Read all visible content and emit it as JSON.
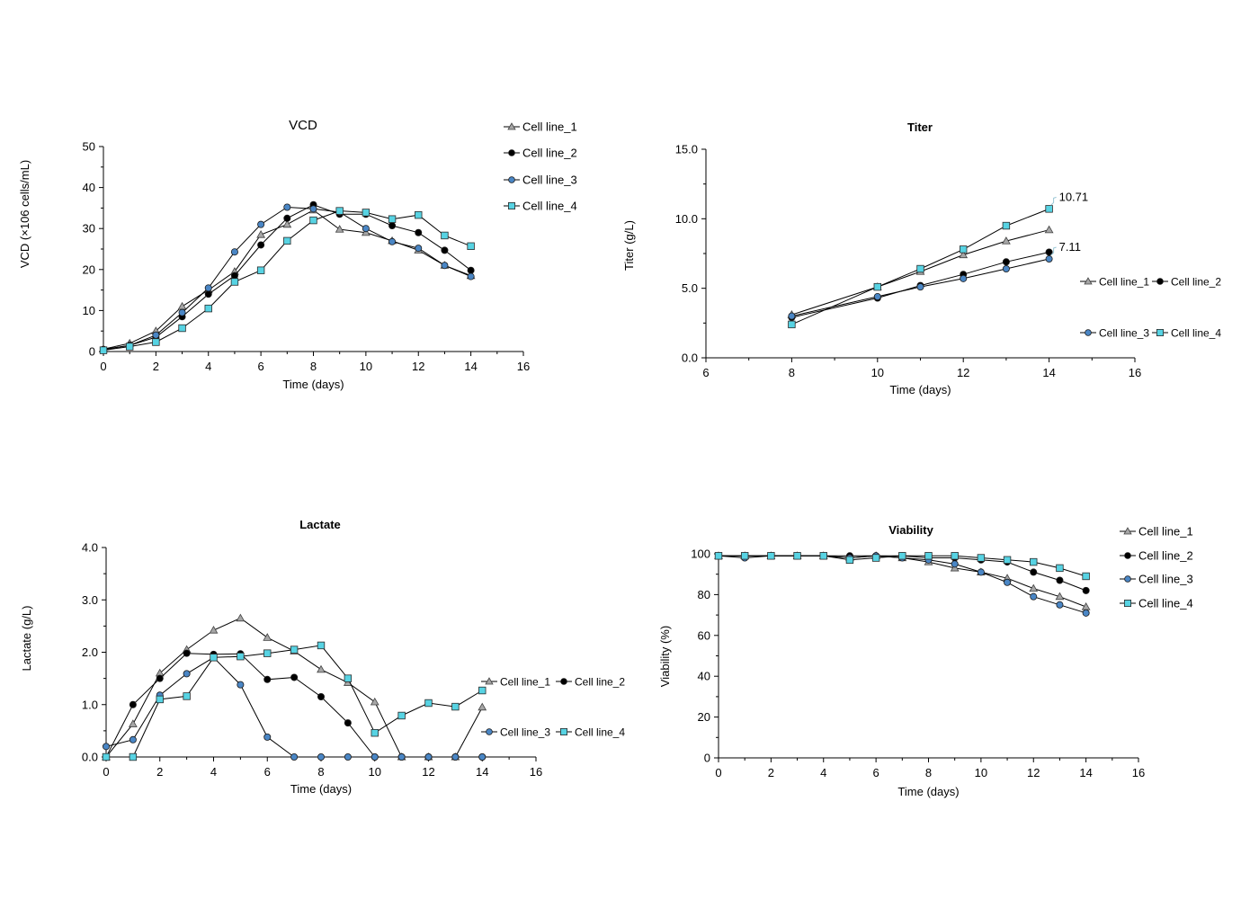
{
  "colors": {
    "cell_line_1_fill": "#a6a6a6",
    "cell_line_2_fill": "#000000",
    "cell_line_3_fill": "#4a86c5",
    "cell_line_4_fill": "#57d3e3",
    "line": "#000000",
    "axis": "#000000"
  },
  "chart_data": [
    {
      "id": "vcd",
      "type": "line",
      "title": "VCD",
      "xlabel": "Time (days)",
      "ylabel": "VCD (×106 cells/mL)",
      "xlim": [
        0,
        16
      ],
      "ylim": [
        0,
        50
      ],
      "xticks": [
        "0",
        "2",
        "4",
        "6",
        "8",
        "10",
        "12",
        "14",
        "16"
      ],
      "yticks": [
        "0",
        "10",
        "20",
        "30",
        "40",
        "50"
      ],
      "legend": "right-vertical",
      "series": [
        {
          "name": "Cell line_1",
          "marker": "triangle",
          "x": [
            0,
            1,
            2,
            3,
            4,
            5,
            6,
            7,
            8,
            9,
            10,
            11,
            12,
            13,
            14
          ],
          "y": [
            0.6,
            2,
            5,
            11,
            15,
            19.5,
            28.5,
            31,
            34.5,
            29.8,
            29,
            27,
            24.7,
            21,
            18.5
          ]
        },
        {
          "name": "Cell line_2",
          "marker": "circle",
          "x": [
            0,
            1,
            2,
            3,
            4,
            5,
            6,
            7,
            8,
            9,
            10,
            11,
            12,
            13,
            14
          ],
          "y": [
            0.5,
            1.5,
            3.5,
            8.5,
            14,
            18.5,
            26,
            32.5,
            35.8,
            33.5,
            33.5,
            30.7,
            29,
            24.7,
            19.8
          ]
        },
        {
          "name": "Cell line_3",
          "marker": "circle",
          "x": [
            0,
            1,
            2,
            3,
            4,
            5,
            6,
            7,
            8,
            9,
            10,
            11,
            12,
            13,
            14
          ],
          "y": [
            0.5,
            1.5,
            4,
            9.5,
            15.5,
            24.3,
            31,
            35.2,
            34.8,
            34,
            30,
            26.8,
            25.2,
            21,
            18.3
          ]
        },
        {
          "name": "Cell line_4",
          "marker": "square",
          "x": [
            0,
            1,
            2,
            3,
            4,
            5,
            6,
            7,
            8,
            9,
            10,
            11,
            12,
            13,
            14
          ],
          "y": [
            0.3,
            1.2,
            2.3,
            5.7,
            10.5,
            17,
            19.8,
            27,
            32,
            34.3,
            33.9,
            32.3,
            33.3,
            28.3,
            25.7
          ]
        }
      ]
    },
    {
      "id": "titer",
      "type": "line",
      "title": "Titer",
      "xlabel": "Time (days)",
      "ylabel": "Titer (g/L)",
      "xlim": [
        6,
        16
      ],
      "ylim": [
        0,
        15
      ],
      "xticks": [
        "6",
        "8",
        "10",
        "12",
        "14",
        "16"
      ],
      "yticks": [
        "0.0",
        "5.0",
        "10.0",
        "15.0"
      ],
      "legend": "right-two-rows",
      "annotations": [
        {
          "text": "10.71",
          "x": 14,
          "y": 10.71
        },
        {
          "text": "7.11",
          "x": 14,
          "y": 7.11
        }
      ],
      "series": [
        {
          "name": "Cell line_1",
          "marker": "triangle",
          "x": [
            8,
            10,
            11,
            12,
            13,
            14
          ],
          "y": [
            3.1,
            5.1,
            6.2,
            7.4,
            8.4,
            9.2
          ]
        },
        {
          "name": "Cell line_2",
          "marker": "circle",
          "x": [
            8,
            10,
            11,
            12,
            13,
            14
          ],
          "y": [
            2.9,
            4.3,
            5.2,
            6.0,
            6.9,
            7.6
          ]
        },
        {
          "name": "Cell line_3",
          "marker": "circle",
          "x": [
            8,
            10,
            11,
            12,
            13,
            14
          ],
          "y": [
            3.0,
            4.4,
            5.1,
            5.7,
            6.4,
            7.11
          ]
        },
        {
          "name": "Cell line_4",
          "marker": "square",
          "x": [
            8,
            10,
            11,
            12,
            13,
            14
          ],
          "y": [
            2.4,
            5.1,
            6.4,
            7.8,
            9.5,
            10.71
          ]
        }
      ]
    },
    {
      "id": "lactate",
      "type": "line",
      "title": "Lactate",
      "xlabel": "Time (days)",
      "ylabel": "Lactate  (g/L)",
      "xlim": [
        0,
        16
      ],
      "ylim": [
        0,
        4
      ],
      "xticks": [
        "0",
        "2",
        "4",
        "6",
        "8",
        "10",
        "12",
        "14",
        "16"
      ],
      "yticks": [
        "0.0",
        "1.0",
        "2.0",
        "3.0",
        "4.0"
      ],
      "legend": "right-two-rows",
      "series": [
        {
          "name": "Cell line_1",
          "marker": "triangle",
          "x": [
            0,
            1,
            2,
            3,
            4,
            5,
            6,
            7,
            8,
            9,
            10,
            11,
            12,
            13,
            14
          ],
          "y": [
            0,
            0.63,
            1.6,
            2.05,
            2.42,
            2.65,
            2.28,
            2.02,
            1.67,
            1.42,
            1.05,
            0,
            0,
            0,
            0.95
          ]
        },
        {
          "name": "Cell line_2",
          "marker": "circle",
          "x": [
            0,
            1,
            2,
            3,
            4,
            5,
            6,
            7,
            8,
            9,
            10,
            11,
            12,
            13,
            14
          ],
          "y": [
            0,
            1.0,
            1.5,
            1.98,
            1.96,
            1.97,
            1.48,
            1.52,
            1.15,
            0.65,
            0,
            0,
            0,
            0,
            0
          ]
        },
        {
          "name": "Cell line_3",
          "marker": "circle",
          "x": [
            0,
            1,
            2,
            3,
            4,
            5,
            6,
            7,
            8,
            9,
            10,
            11,
            12,
            13,
            14
          ],
          "y": [
            0.2,
            0.33,
            1.18,
            1.59,
            1.9,
            1.38,
            0.38,
            0,
            0,
            0,
            0,
            0,
            0,
            0,
            0
          ]
        },
        {
          "name": "Cell line_4",
          "marker": "square",
          "x": [
            0,
            1,
            2,
            3,
            4,
            5,
            6,
            7,
            8,
            9,
            10,
            11,
            12,
            13,
            14
          ],
          "y": [
            0,
            0,
            1.1,
            1.16,
            1.9,
            1.92,
            1.98,
            2.05,
            2.13,
            1.5,
            0.46,
            0.79,
            1.03,
            0.96,
            1.27
          ]
        }
      ]
    },
    {
      "id": "viability",
      "type": "line",
      "title": "Viability",
      "xlabel": "Time (days)",
      "ylabel": "Viability (%)",
      "xlim": [
        0,
        16
      ],
      "ylim": [
        0,
        100
      ],
      "xticks": [
        "0",
        "2",
        "4",
        "6",
        "8",
        "10",
        "12",
        "14",
        "16"
      ],
      "yticks": [
        "0",
        "20",
        "40",
        "60",
        "80",
        "100"
      ],
      "legend": "right-vertical",
      "series": [
        {
          "name": "Cell line_1",
          "marker": "triangle",
          "x": [
            0,
            1,
            2,
            3,
            4,
            5,
            6,
            7,
            8,
            9,
            10,
            11,
            12,
            13,
            14
          ],
          "y": [
            99,
            99,
            99,
            99,
            99,
            98,
            99,
            98,
            96,
            93,
            91,
            88,
            83,
            79,
            74
          ]
        },
        {
          "name": "Cell line_2",
          "marker": "circle",
          "x": [
            0,
            1,
            2,
            3,
            4,
            5,
            6,
            7,
            8,
            9,
            10,
            11,
            12,
            13,
            14
          ],
          "y": [
            99,
            99,
            99,
            99,
            99,
            99,
            99,
            99,
            98,
            98,
            97,
            96,
            91,
            87,
            82
          ]
        },
        {
          "name": "Cell line_3",
          "marker": "circle",
          "x": [
            0,
            1,
            2,
            3,
            4,
            5,
            6,
            7,
            8,
            9,
            10,
            11,
            12,
            13,
            14
          ],
          "y": [
            99,
            98,
            99,
            99,
            99,
            98,
            99,
            98,
            97,
            95,
            91,
            86,
            79,
            75,
            71
          ]
        },
        {
          "name": "Cell line_4",
          "marker": "square",
          "x": [
            0,
            1,
            2,
            3,
            4,
            5,
            6,
            7,
            8,
            9,
            10,
            11,
            12,
            13,
            14
          ],
          "y": [
            99,
            99,
            99,
            99,
            99,
            97,
            98,
            99,
            99,
            99,
            98,
            97,
            96,
            93,
            89
          ]
        }
      ]
    }
  ]
}
